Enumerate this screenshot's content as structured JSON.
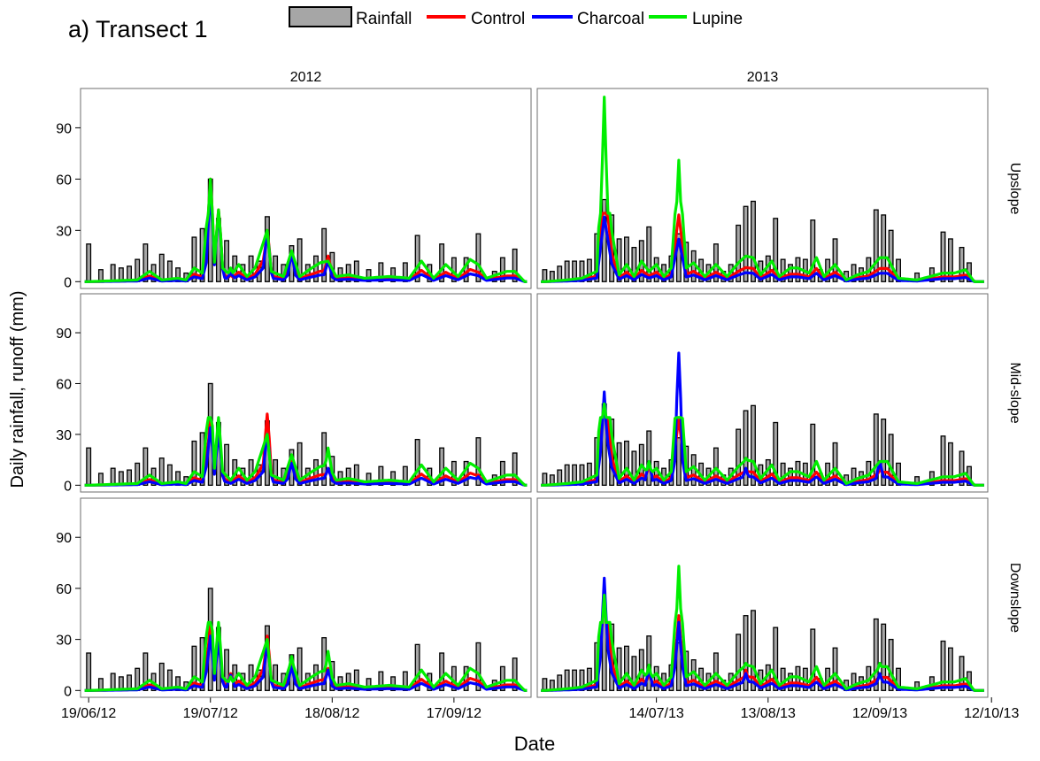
{
  "figure_title": "a) Transect 1",
  "legend": [
    {
      "label": "Rainfall",
      "color": "#a6a6a6",
      "kind": "bar"
    },
    {
      "label": "Control",
      "color": "#ff0000",
      "kind": "line"
    },
    {
      "label": "Charcoal",
      "color": "#0000ff",
      "kind": "line"
    },
    {
      "label": "Lupine",
      "color": "#00ee00",
      "kind": "line"
    }
  ],
  "chart_data": {
    "type": "bar",
    "title": "a) Transect 1",
    "xlabel": "Date",
    "ylabel": "Daily rainfall, runoff (mm)",
    "ylim": [
      -4,
      113
    ],
    "y_ticks": [
      0,
      30,
      60,
      90
    ],
    "grid": false,
    "legend_placement": "top",
    "series_names": [
      "Rainfall",
      "Control",
      "Charcoal",
      "Lupine"
    ],
    "colors": {
      "Rainfall": "#a6a6a6",
      "Control": "#ff0000",
      "Charcoal": "#0000ff",
      "Lupine": "#00ee00"
    },
    "columns": [
      {
        "label": "2012",
        "xlim": [
          "2012-06-17",
          "2012-10-06"
        ],
        "x_ticks": [
          {
            "date": "2012-06-19",
            "label": "19/06/12"
          },
          {
            "date": "2012-07-19",
            "label": "19/07/12"
          },
          {
            "date": "2012-08-18",
            "label": "18/08/12"
          },
          {
            "date": "2012-09-17",
            "label": "17/09/12"
          }
        ]
      },
      {
        "label": "2013",
        "xlim": [
          "2013-06-12",
          "2013-10-11"
        ],
        "x_ticks": [
          {
            "date": "2013-07-14",
            "label": "14/07/13"
          },
          {
            "date": "2013-08-13",
            "label": "13/08/13"
          },
          {
            "date": "2013-09-12",
            "label": "12/09/13"
          },
          {
            "date": "2013-10-12",
            "label": "12/10/13"
          }
        ]
      }
    ],
    "rows": [
      "Upslope",
      "Mid-slope",
      "Downslope"
    ],
    "rainfall": [
      {
        "year": "2012",
        "points": [
          [
            "2012-06-19",
            22
          ],
          [
            "2012-06-22",
            7
          ],
          [
            "2012-06-25",
            10
          ],
          [
            "2012-06-27",
            8
          ],
          [
            "2012-06-29",
            9
          ],
          [
            "2012-07-01",
            13
          ],
          [
            "2012-07-03",
            22
          ],
          [
            "2012-07-05",
            10
          ],
          [
            "2012-07-07",
            16
          ],
          [
            "2012-07-09",
            12
          ],
          [
            "2012-07-11",
            8
          ],
          [
            "2012-07-13",
            5
          ],
          [
            "2012-07-15",
            26
          ],
          [
            "2012-07-17",
            31
          ],
          [
            "2012-07-19",
            60
          ],
          [
            "2012-07-21",
            37
          ],
          [
            "2012-07-23",
            24
          ],
          [
            "2012-07-25",
            15
          ],
          [
            "2012-07-27",
            10
          ],
          [
            "2012-07-29",
            15
          ],
          [
            "2012-07-31",
            12
          ],
          [
            "2012-08-02",
            38
          ],
          [
            "2012-08-04",
            15
          ],
          [
            "2012-08-06",
            10
          ],
          [
            "2012-08-08",
            21
          ],
          [
            "2012-08-10",
            25
          ],
          [
            "2012-08-12",
            10
          ],
          [
            "2012-08-14",
            15
          ],
          [
            "2012-08-16",
            31
          ],
          [
            "2012-08-18",
            17
          ],
          [
            "2012-08-20",
            8
          ],
          [
            "2012-08-22",
            10
          ],
          [
            "2012-08-24",
            12
          ],
          [
            "2012-08-27",
            7
          ],
          [
            "2012-08-30",
            11
          ],
          [
            "2012-09-02",
            8
          ],
          [
            "2012-09-05",
            11
          ],
          [
            "2012-09-08",
            27
          ],
          [
            "2012-09-11",
            10
          ],
          [
            "2012-09-14",
            22
          ],
          [
            "2012-09-17",
            14
          ],
          [
            "2012-09-20",
            14
          ],
          [
            "2012-09-23",
            28
          ],
          [
            "2012-09-27",
            6
          ],
          [
            "2012-09-29",
            14
          ],
          [
            "2012-10-02",
            19
          ]
        ]
      },
      {
        "year": "2013",
        "points": [
          [
            "2013-06-14",
            7
          ],
          [
            "2013-06-16",
            6
          ],
          [
            "2013-06-18",
            9
          ],
          [
            "2013-06-20",
            12
          ],
          [
            "2013-06-22",
            12
          ],
          [
            "2013-06-24",
            12
          ],
          [
            "2013-06-26",
            13
          ],
          [
            "2013-06-28",
            28
          ],
          [
            "2013-06-30",
            48
          ],
          [
            "2013-07-02",
            39
          ],
          [
            "2013-07-04",
            25
          ],
          [
            "2013-07-06",
            26
          ],
          [
            "2013-07-08",
            20
          ],
          [
            "2013-07-10",
            24
          ],
          [
            "2013-07-12",
            32
          ],
          [
            "2013-07-14",
            14
          ],
          [
            "2013-07-16",
            10
          ],
          [
            "2013-07-18",
            15
          ],
          [
            "2013-07-20",
            28
          ],
          [
            "2013-07-22",
            23
          ],
          [
            "2013-07-24",
            18
          ],
          [
            "2013-07-26",
            13
          ],
          [
            "2013-07-28",
            10
          ],
          [
            "2013-07-30",
            22
          ],
          [
            "2013-08-01",
            6
          ],
          [
            "2013-08-03",
            10
          ],
          [
            "2013-08-05",
            33
          ],
          [
            "2013-08-07",
            44
          ],
          [
            "2013-08-09",
            47
          ],
          [
            "2013-08-11",
            12
          ],
          [
            "2013-08-13",
            15
          ],
          [
            "2013-08-15",
            37
          ],
          [
            "2013-08-17",
            13
          ],
          [
            "2013-08-19",
            10
          ],
          [
            "2013-08-21",
            14
          ],
          [
            "2013-08-23",
            13
          ],
          [
            "2013-08-25",
            36
          ],
          [
            "2013-08-27",
            7
          ],
          [
            "2013-08-29",
            13
          ],
          [
            "2013-08-31",
            25
          ],
          [
            "2013-09-03",
            6
          ],
          [
            "2013-09-05",
            10
          ],
          [
            "2013-09-07",
            8
          ],
          [
            "2013-09-09",
            14
          ],
          [
            "2013-09-11",
            42
          ],
          [
            "2013-09-13",
            39
          ],
          [
            "2013-09-15",
            30
          ],
          [
            "2013-09-17",
            13
          ],
          [
            "2013-09-22",
            5
          ],
          [
            "2013-09-26",
            8
          ],
          [
            "2013-09-29",
            29
          ],
          [
            "2013-10-01",
            25
          ],
          [
            "2013-10-04",
            20
          ],
          [
            "2013-10-06",
            11
          ]
        ]
      }
    ],
    "runoff_points": [
      [
        "2012-06-19",
        0
      ],
      [
        "2012-07-01",
        1
      ],
      [
        "2012-07-04",
        6
      ],
      [
        "2012-07-07",
        1
      ],
      [
        "2012-07-11",
        2
      ],
      [
        "2012-07-13",
        1
      ],
      [
        "2012-07-15",
        8
      ],
      [
        "2012-07-17",
        5
      ],
      [
        "2012-07-19",
        60
      ],
      [
        "2012-07-20",
        10
      ],
      [
        "2012-07-21",
        42
      ],
      [
        "2012-07-22",
        8
      ],
      [
        "2012-07-24",
        3
      ],
      [
        "2012-07-26",
        10
      ],
      [
        "2012-07-28",
        3
      ],
      [
        "2012-07-30",
        8
      ],
      [
        "2012-08-02",
        30
      ],
      [
        "2012-08-03",
        6
      ],
      [
        "2012-08-06",
        3
      ],
      [
        "2012-08-08",
        18
      ],
      [
        "2012-08-10",
        3
      ],
      [
        "2012-08-13",
        8
      ],
      [
        "2012-08-15",
        11
      ],
      [
        "2012-08-17",
        12
      ],
      [
        "2012-08-19",
        3
      ],
      [
        "2012-08-22",
        4
      ],
      [
        "2012-08-26",
        2
      ],
      [
        "2012-09-01",
        3
      ],
      [
        "2012-09-06",
        2
      ],
      [
        "2012-09-09",
        12
      ],
      [
        "2012-09-12",
        2
      ],
      [
        "2012-09-15",
        10
      ],
      [
        "2012-09-18",
        3
      ],
      [
        "2012-09-21",
        13
      ],
      [
        "2012-09-23",
        10
      ],
      [
        "2012-09-25",
        2
      ],
      [
        "2012-09-30",
        6
      ],
      [
        "2012-10-02",
        6
      ],
      [
        "2012-10-04",
        1
      ],
      [
        "2013-06-14",
        0
      ],
      [
        "2013-06-20",
        1
      ],
      [
        "2013-06-24",
        2
      ],
      [
        "2013-06-28",
        6
      ],
      [
        "2013-06-30",
        108
      ],
      [
        "2013-07-02",
        30
      ],
      [
        "2013-07-04",
        4
      ],
      [
        "2013-07-06",
        10
      ],
      [
        "2013-07-08",
        3
      ],
      [
        "2013-07-10",
        12
      ],
      [
        "2013-07-12",
        6
      ],
      [
        "2013-07-14",
        10
      ],
      [
        "2013-07-16",
        3
      ],
      [
        "2013-07-18",
        8
      ],
      [
        "2013-07-20",
        71
      ],
      [
        "2013-07-22",
        8
      ],
      [
        "2013-07-24",
        11
      ],
      [
        "2013-07-27",
        3
      ],
      [
        "2013-07-30",
        10
      ],
      [
        "2013-08-02",
        3
      ],
      [
        "2013-08-05",
        11
      ],
      [
        "2013-08-07",
        15
      ],
      [
        "2013-08-09",
        14
      ],
      [
        "2013-08-11",
        4
      ],
      [
        "2013-08-14",
        12
      ],
      [
        "2013-08-16",
        3
      ],
      [
        "2013-08-19",
        8
      ],
      [
        "2013-08-21",
        8
      ],
      [
        "2013-08-24",
        5
      ],
      [
        "2013-08-26",
        14
      ],
      [
        "2013-08-28",
        3
      ],
      [
        "2013-08-31",
        10
      ],
      [
        "2013-09-03",
        1
      ],
      [
        "2013-09-06",
        4
      ],
      [
        "2013-09-09",
        6
      ],
      [
        "2013-09-12",
        14
      ],
      [
        "2013-09-14",
        14
      ],
      [
        "2013-09-17",
        2
      ],
      [
        "2013-09-22",
        1
      ],
      [
        "2013-09-29",
        5
      ],
      [
        "2013-10-02",
        5
      ],
      [
        "2013-10-05",
        7
      ],
      [
        "2013-10-07",
        1
      ]
    ],
    "runoff_peaks": {
      "Upslope": {
        "2012": [
          [
            "2012-07-19",
            60,
            52,
            60
          ],
          [
            "2012-07-21",
            42,
            40,
            42
          ],
          [
            "2012-08-02",
            30,
            28,
            25
          ],
          [
            "2012-08-08",
            17,
            16,
            18
          ],
          [
            "2012-08-17",
            15,
            12,
            12
          ],
          [
            "2012-07-24",
            4,
            5,
            8
          ]
        ],
        "2013": [
          [
            "2013-06-30",
            16,
            12,
            108
          ],
          [
            "2013-07-20",
            10,
            16,
            71
          ],
          [
            "2013-08-07",
            6,
            4,
            15
          ],
          [
            "2013-09-12",
            3,
            2,
            14
          ]
        ]
      },
      "Mid-slope": {
        "2012": [
          [
            "2012-07-19",
            38,
            34,
            40
          ],
          [
            "2012-07-21",
            32,
            30,
            36
          ],
          [
            "2012-08-02",
            42,
            30,
            28
          ],
          [
            "2012-08-08",
            14,
            13,
            15
          ],
          [
            "2012-08-17",
            10,
            10,
            22
          ],
          [
            "2012-09-23",
            6,
            5,
            10
          ]
        ],
        "2013": [
          [
            "2013-06-30",
            44,
            55,
            48
          ],
          [
            "2013-07-20",
            40,
            78,
            36
          ],
          [
            "2013-07-12",
            12,
            14,
            14
          ],
          [
            "2013-08-07",
            8,
            10,
            16
          ],
          [
            "2013-09-12",
            10,
            14,
            13
          ]
        ]
      },
      "Downslope": {
        "2012": [
          [
            "2012-07-19",
            39,
            32,
            36
          ],
          [
            "2012-07-21",
            32,
            28,
            30
          ],
          [
            "2012-08-02",
            32,
            27,
            26
          ],
          [
            "2012-08-08",
            16,
            14,
            20
          ],
          [
            "2012-08-17",
            13,
            12,
            23
          ],
          [
            "2012-07-24",
            10,
            9,
            8
          ]
        ],
        "2013": [
          [
            "2013-06-30",
            58,
            66,
            56
          ],
          [
            "2013-07-20",
            44,
            40,
            73
          ],
          [
            "2013-07-12",
            10,
            12,
            15
          ],
          [
            "2013-08-07",
            12,
            10,
            16
          ],
          [
            "2013-09-12",
            8,
            10,
            16
          ]
        ]
      }
    }
  }
}
